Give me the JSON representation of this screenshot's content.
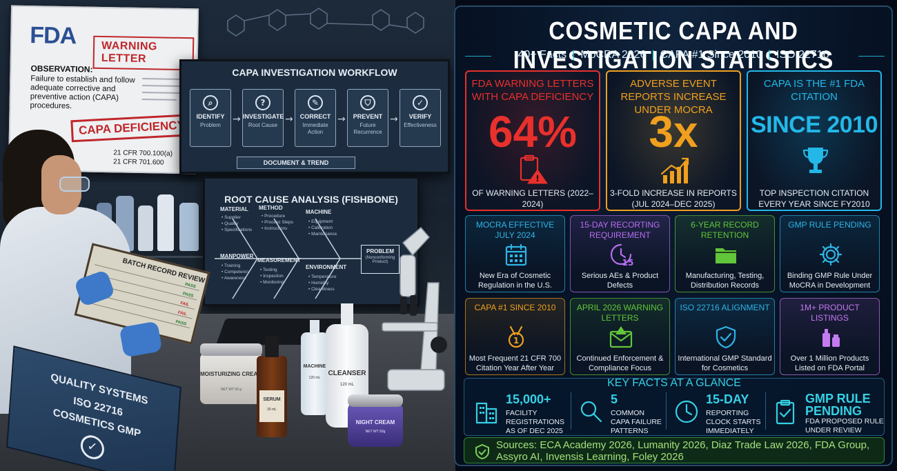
{
  "scene": {
    "fda_logo": "FDA",
    "warning_letter": "WARNING LETTER",
    "observation_label": "OBSERVATION:",
    "observation_text": "Failure to establish and follow adequate corrective and preventive action (CAPA) procedures.",
    "stamp": "CAPA DEFICIENCY",
    "cfr_1": "21 CFR 700.100(a)",
    "cfr_2": "21 CFR 701.600",
    "workflow": {
      "title": "CAPA INVESTIGATION WORKFLOW",
      "steps": [
        {
          "icon": "magnifier-icon",
          "label": "IDENTIFY",
          "sub": "Problem"
        },
        {
          "icon": "question-icon",
          "label": "INVESTIGATE",
          "sub": "Root Cause"
        },
        {
          "icon": "wrench-icon",
          "label": "CORRECT",
          "sub": "Immediate Action"
        },
        {
          "icon": "shield-icon",
          "label": "PREVENT",
          "sub": "Future Recurrence"
        },
        {
          "icon": "check-circle-icon",
          "label": "VERIFY",
          "sub": "Effectiveness"
        }
      ],
      "document_trend": "DOCUMENT & TREND"
    },
    "fishbone": {
      "title": "ROOT CAUSE ANALYSIS (FISHBONE)",
      "material": "MATERIAL",
      "material_items": "• Supplier\n• Quality\n• Specifications",
      "method": "METHOD",
      "method_items": "• Procedure\n• Process Steps\n• Instructions",
      "machine": "MACHINE",
      "machine_items": "• Equipment\n• Calibration\n• Maintenance",
      "manpower": "MANPOWER",
      "manpower_items": "• Training\n• Competency\n• Awareness",
      "measurement": "MEASUREMENT",
      "measurement_items": "• Testing\n• Inspection\n• Monitoring",
      "environment": "ENVIRONMENT",
      "environment_items": "• Temperature\n• Humidity\n• Cleanliness",
      "problem": "PROBLEM",
      "problem_sub": "(Nonconforming Product)"
    },
    "batch_record": "BATCH RECORD REVIEW",
    "batch_statuses": [
      "PASS",
      "PASS",
      "FAIL",
      "FAIL",
      "PASS"
    ],
    "binder_line1": "QUALITY SYSTEMS",
    "binder_line2": "ISO 22716",
    "binder_line3": "COSMETICS GMP",
    "moisturizing_cream": "MOISTURIZING CREAM",
    "cream_weight": "NET WT 50 g",
    "serum": "SERUM",
    "serum_vol": "30 mL",
    "machine_bottle": "MACHINE",
    "machine_vol": "120 mL",
    "cleanser": "CLEANSER",
    "cleanser_vol": "120 mL",
    "night_cream": "NIGHT CREAM",
    "night_weight": "NET WT 50g"
  },
  "info": {
    "title": "COSMETIC CAPA AND INVESTIGATION STATISTICS",
    "subtitle_items": [
      "40+ Facts",
      "MoCRA 2026",
      "CAPA #1 Since 2010",
      "ISO 22716"
    ],
    "big_cards": [
      {
        "heading": "FDA WARNING LETTERS WITH CAPA DEFICIENCY",
        "value": "64%",
        "icon": "clipboard-warning-icon",
        "desc": "OF WARNING LETTERS (2022–2024)",
        "color": "#e8302c"
      },
      {
        "heading": "ADVERSE EVENT REPORTS INCREASE UNDER MoCRA",
        "value": "3x",
        "icon": "growth-chart-icon",
        "desc": "3-FOLD INCREASE IN REPORTS (JUL 2024–DEC 2025)",
        "color": "#f0a01e"
      },
      {
        "heading": "CAPA IS THE #1 FDA CITATION",
        "value": "SINCE 2010",
        "icon": "trophy-icon",
        "desc": "TOP INSPECTION CITATION EVERY YEAR SINCE FY2010",
        "color": "#23b8e8"
      }
    ],
    "small_cards": [
      {
        "heading": "MoCRA EFFECTIVE JULY 2024",
        "icon": "calendar-icon",
        "desc": "New Era of Cosmetic Regulation in the U.S.",
        "color": "#2fb4e6"
      },
      {
        "heading": "15-DAY RECORTING REQUIREMENT",
        "icon": "timer-15-icon",
        "desc": "Serious AEs & Product Defects",
        "color": "#b86ef0"
      },
      {
        "heading": "6-YEAR RECORD RETENTION",
        "icon": "folder-icon",
        "desc": "Manufacturing, Testing, Distribution Records",
        "color": "#62c63a"
      },
      {
        "heading": "GMP RULE PENDING",
        "icon": "gear-icon",
        "desc": "Binding GMP Rule Under MoCRA in Development",
        "color": "#2fb4e6"
      },
      {
        "heading": "CAPA #1 SINCE 2010",
        "icon": "medal-icon",
        "desc": "Most Frequent 21 CFR 700 Citation Year After Year",
        "color": "#f0a01e"
      },
      {
        "heading": "APRIL 2026 WARNING LETTERS",
        "icon": "envelope-warning-icon",
        "desc": "Continued Enforcement & Compliance Focus",
        "color": "#62c63a"
      },
      {
        "heading": "ISO 22716 ALIGNMENT",
        "icon": "shield-check-icon",
        "desc": "International GMP Standard for Cosmetics",
        "color": "#2fb4e6"
      },
      {
        "heading": "1M+ PRODUCT LISTINGS",
        "icon": "bottles-icon",
        "desc": "Over 1 Million Products Listed on FDA Portal",
        "color": "#c47af0"
      }
    ],
    "key_facts": {
      "title": "KEY FACTS AT A GLANCE",
      "items": [
        {
          "icon": "building-icon",
          "value": "15,000+",
          "desc": "FACILITY\nREGISTRATIONS\nAS OF DEC 2025"
        },
        {
          "icon": "magnifier-icon",
          "value": "5",
          "desc": "COMMON\nCAPA FAILURE\nPATTERNS"
        },
        {
          "icon": "clock-icon",
          "value": "15-DAY",
          "desc": "REPORTING\nCLOCK STARTS\nIMMEDIATELY"
        },
        {
          "icon": "clipboard-check-icon",
          "value": "GMP RULE\nPENDING",
          "desc": "FDA PROPOSED RULE\nUNDER REVIEW"
        }
      ]
    },
    "sources": "Sources: ECA Academy 2026, Lumanity 2026, Diaz Trade Law 2026, FDA Group, Assyro AI, Invensis Learning, Foley 2026"
  }
}
